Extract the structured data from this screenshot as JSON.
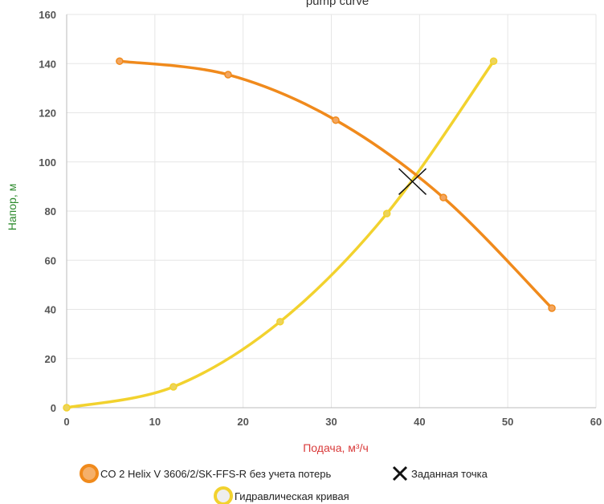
{
  "chart_data": {
    "type": "line",
    "title": "pump curve",
    "xlabel": "Подача, м³/ч",
    "ylabel": "Напор, м",
    "xlim": [
      0,
      60
    ],
    "ylim": [
      0,
      160
    ],
    "x_ticks": [
      0,
      10,
      20,
      30,
      40,
      50,
      60
    ],
    "y_ticks": [
      0,
      20,
      40,
      60,
      80,
      100,
      120,
      140,
      160
    ],
    "grid": true,
    "legend_position": "bottom",
    "series": [
      {
        "name": "CO 2 Helix V 3606/2/SK-FFS-R без учета потерь",
        "color": "#f08a1c",
        "points": [
          [
            6,
            141
          ],
          [
            18.3,
            135.5
          ],
          [
            30.5,
            117
          ],
          [
            42.7,
            85.5
          ],
          [
            55,
            40.5
          ]
        ]
      },
      {
        "name": "Гидравлическая кривая",
        "color": "#f2d22e",
        "points": [
          [
            0,
            0
          ],
          [
            12.1,
            8.5
          ],
          [
            24.2,
            35
          ],
          [
            36.3,
            79
          ],
          [
            48.4,
            141
          ]
        ]
      }
    ],
    "setpoint": {
      "name": "Заданная точка",
      "x": 39.2,
      "y": 92,
      "color": "#111111"
    }
  }
}
